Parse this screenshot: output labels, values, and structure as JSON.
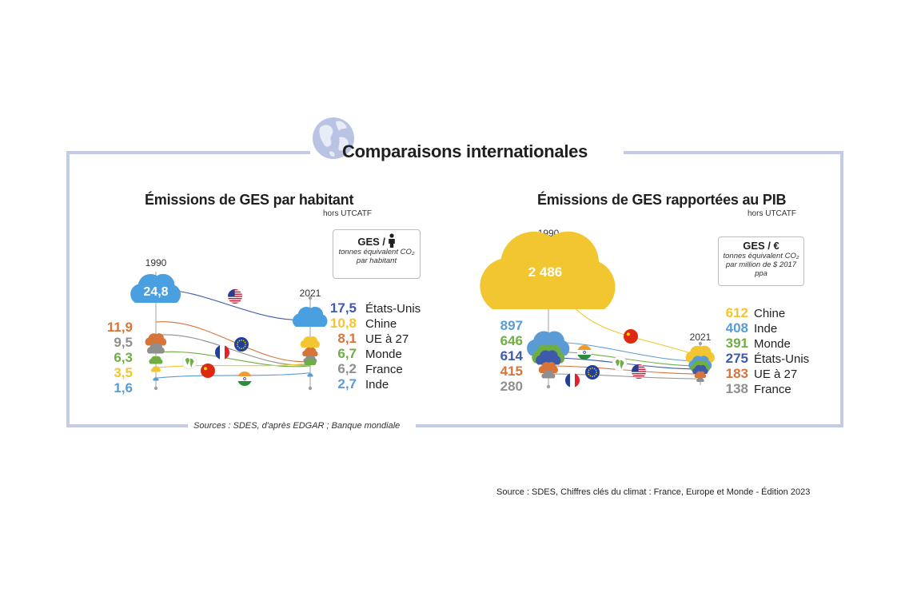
{
  "main_title": "Comparaisons internationales",
  "sources_note": "Sources : SDES, d'après EDGAR ; Banque mondiale",
  "footer_source": "Source : SDES, Chiffres clés du climat : France, Europe et Monde - Édition 2023",
  "colors": {
    "frame": "#c3cbe6",
    "usa": "#3d5aab",
    "china": "#f2c630",
    "eu": "#d7743a",
    "world": "#6fae45",
    "france": "#8f8f8f",
    "india": "#5b9bd5"
  },
  "chart_data": [
    {
      "type": "line",
      "title": "Émissions de GES par habitant",
      "subtitle": "hors UTCATF",
      "unit_label": "GES /",
      "unit_icon": "person-icon",
      "unit_text": "tonnes équivalent CO₂ par habitant",
      "x": [
        "1990",
        "2021"
      ],
      "series": [
        {
          "name": "États-Unis",
          "start": 24.8,
          "end": 17.5,
          "start_label": "24,8",
          "end_label": "17,5",
          "color": "#3d5aab",
          "flag": "usa-flag-icon"
        },
        {
          "name": "UE à 27",
          "start": 11.9,
          "end": 8.1,
          "start_label": "11,9",
          "end_label": "8,1",
          "color": "#d7743a",
          "flag": "eu-flag-icon"
        },
        {
          "name": "France",
          "start": 9.5,
          "end": 6.2,
          "start_label": "9,5",
          "end_label": "6,2",
          "color": "#8f8f8f",
          "flag": "france-flag-icon"
        },
        {
          "name": "Monde",
          "start": 6.3,
          "end": 6.7,
          "start_label": "6,3",
          "end_label": "6,7",
          "color": "#6fae45",
          "flag": "world-globe-icon"
        },
        {
          "name": "Chine",
          "start": 3.5,
          "end": 10.8,
          "start_label": "3,5",
          "end_label": "10,8",
          "color": "#f2c630",
          "flag": "china-flag-icon"
        },
        {
          "name": "Inde",
          "start": 1.6,
          "end": 2.7,
          "start_label": "1,6",
          "end_label": "2,7",
          "color": "#5b9bd5",
          "flag": "india-flag-icon"
        }
      ],
      "legend_order": [
        "États-Unis",
        "Chine",
        "UE à 27",
        "Monde",
        "France",
        "Inde"
      ],
      "start_order": [
        "UE à 27",
        "France",
        "Monde",
        "Chine",
        "Inde"
      ],
      "emphasis": "États-Unis"
    },
    {
      "type": "line",
      "title": "Émissions de GES rapportées au PIB",
      "subtitle": "hors UTCATF",
      "unit_label": "GES / €",
      "unit_text": "tonnes équivalent CO₂ par million de $ 2017 ppa",
      "x": [
        "1990",
        "2021"
      ],
      "series": [
        {
          "name": "Chine",
          "start": 2486,
          "end": 612,
          "start_label": "2 486",
          "end_label": "612",
          "color": "#f2c630",
          "flag": "china-flag-icon"
        },
        {
          "name": "Inde",
          "start": 897,
          "end": 408,
          "start_label": "897",
          "end_label": "408",
          "color": "#5b9bd5",
          "flag": "india-flag-icon"
        },
        {
          "name": "Monde",
          "start": 646,
          "end": 391,
          "start_label": "646",
          "end_label": "391",
          "color": "#6fae45",
          "flag": "world-globe-icon"
        },
        {
          "name": "États-Unis",
          "start": 614,
          "end": 275,
          "start_label": "614",
          "end_label": "275",
          "color": "#3d5aab",
          "flag": "usa-flag-icon"
        },
        {
          "name": "UE à 27",
          "start": 415,
          "end": 183,
          "start_label": "415",
          "end_label": "183",
          "color": "#d7743a",
          "flag": "eu-flag-icon"
        },
        {
          "name": "France",
          "start": 280,
          "end": 138,
          "start_label": "280",
          "end_label": "138",
          "color": "#8f8f8f",
          "flag": "france-flag-icon"
        }
      ],
      "legend_order": [
        "Chine",
        "Inde",
        "Monde",
        "États-Unis",
        "UE à 27",
        "France"
      ],
      "start_order": [
        "Inde",
        "Monde",
        "États-Unis",
        "UE à 27",
        "France"
      ],
      "emphasis": "Chine"
    }
  ]
}
